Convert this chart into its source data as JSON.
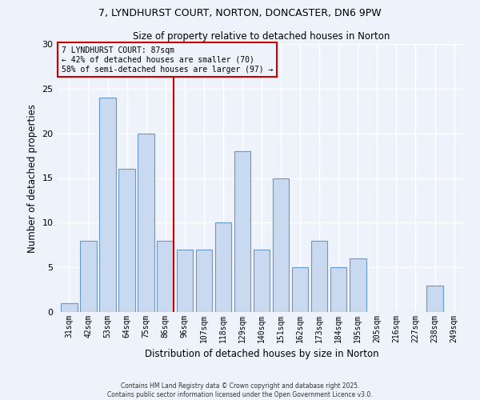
{
  "title_line1": "7, LYNDHURST COURT, NORTON, DONCASTER, DN6 9PW",
  "title_line2": "Size of property relative to detached houses in Norton",
  "xlabel": "Distribution of detached houses by size in Norton",
  "ylabel": "Number of detached properties",
  "categories": [
    "31sqm",
    "42sqm",
    "53sqm",
    "64sqm",
    "75sqm",
    "86sqm",
    "96sqm",
    "107sqm",
    "118sqm",
    "129sqm",
    "140sqm",
    "151sqm",
    "162sqm",
    "173sqm",
    "184sqm",
    "195sqm",
    "205sqm",
    "216sqm",
    "227sqm",
    "238sqm",
    "249sqm"
  ],
  "values": [
    1,
    8,
    24,
    16,
    20,
    8,
    7,
    7,
    10,
    18,
    7,
    15,
    5,
    8,
    5,
    6,
    0,
    0,
    0,
    3,
    0
  ],
  "bar_color": "#c9d9f0",
  "bar_edge_color": "#6699cc",
  "vline_x_index": 5,
  "vline_color": "#cc0000",
  "annotation_title": "7 LYNDHURST COURT: 87sqm",
  "annotation_line2": "← 42% of detached houses are smaller (70)",
  "annotation_line3": "58% of semi-detached houses are larger (97) →",
  "annotation_box_color": "#cc0000",
  "ylim": [
    0,
    30
  ],
  "yticks": [
    0,
    5,
    10,
    15,
    20,
    25,
    30
  ],
  "footer_line1": "Contains HM Land Registry data © Crown copyright and database right 2025.",
  "footer_line2": "Contains public sector information licensed under the Open Government Licence v3.0.",
  "bg_color": "#eef2fb",
  "grid_color": "#ffffff"
}
